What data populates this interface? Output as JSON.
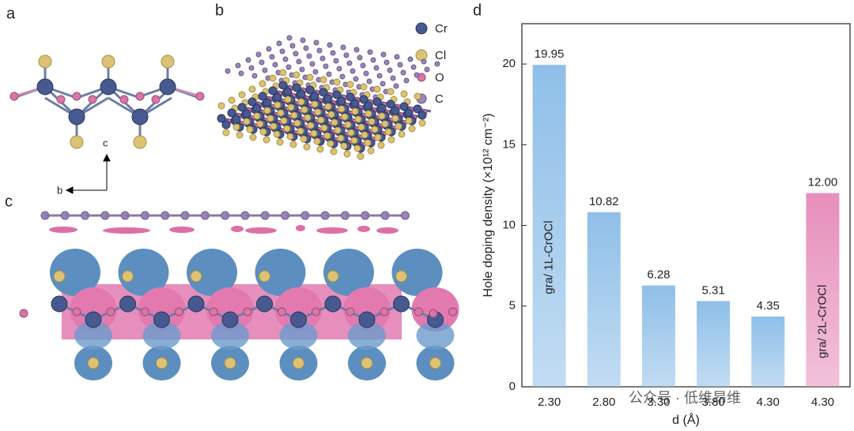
{
  "chart_data": {
    "type": "bar",
    "panel_label": "d",
    "x_label": "d (Å)",
    "y_label": "Hole doping density  (×10¹² cm⁻²)",
    "categories": [
      "2.30",
      "2.80",
      "3.30",
      "3.80",
      "4.30",
      "4.30"
    ],
    "values": [
      19.95,
      10.82,
      6.28,
      5.31,
      4.35,
      12.0
    ],
    "value_labels": [
      "19.95",
      "10.82",
      "6.28",
      "5.31",
      "4.35",
      "12.00"
    ],
    "bar_labels": [
      "gra/ 1L-CrOCl",
      null,
      null,
      null,
      null,
      "gra/ 2L-CrOCl"
    ],
    "colors": [
      "#8fbfe8",
      "#8fbfe8",
      "#8fbfe8",
      "#8fbfe8",
      "#8fbfe8",
      "#e78fbb"
    ],
    "ylim": [
      0,
      22.5
    ],
    "yticks": [
      0,
      5,
      10,
      15,
      20
    ]
  },
  "structure": {
    "panel_labels": [
      "a",
      "b",
      "c"
    ],
    "legend": [
      "Cr",
      "Cl",
      "O",
      "C"
    ],
    "axes": [
      "c",
      "b"
    ]
  },
  "watermark": "公众号 · 低维昂维"
}
